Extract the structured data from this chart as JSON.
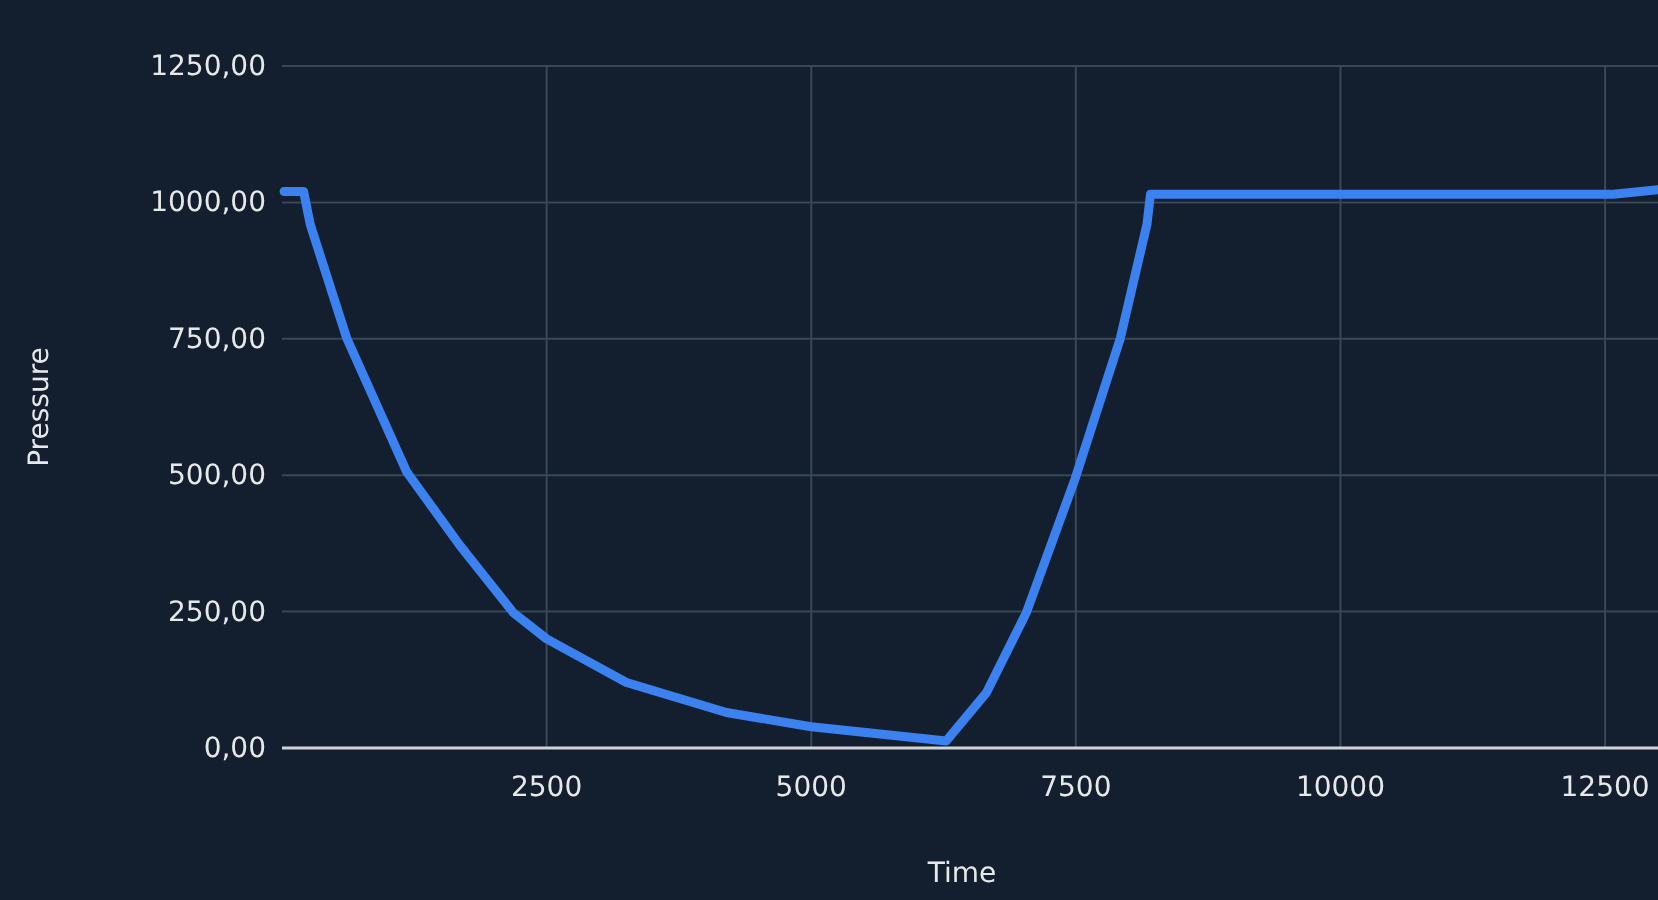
{
  "chart_data": {
    "type": "line",
    "xlabel": "Time",
    "ylabel": "Pressure",
    "xlim": [
      0,
      13000
    ],
    "ylim": [
      0,
      1250
    ],
    "xticks": [
      2500,
      5000,
      7500,
      10000,
      12500
    ],
    "yticks": [
      {
        "value": 0,
        "label": "0,00"
      },
      {
        "value": 250,
        "label": "250,00"
      },
      {
        "value": 500,
        "label": "500,00"
      },
      {
        "value": 750,
        "label": "750,00"
      },
      {
        "value": 1000,
        "label": "1000,00"
      },
      {
        "value": 1250,
        "label": "1250,00"
      }
    ],
    "grid": true,
    "marker": "none",
    "line_style": "solid",
    "x": [
      20,
      204,
      266,
      612,
      1178,
      1682,
      2186,
      2500,
      3255,
      4199,
      5000,
      6276,
      6654,
      7032,
      7494,
      7920,
      8172,
      8205,
      10000,
      12580,
      13000
    ],
    "series": [
      {
        "color": "#3b82f0",
        "values": [
          1020,
          1020,
          960,
          751,
          506,
          371,
          248,
          200,
          120,
          65,
          39,
          13,
          101,
          248,
          494,
          751,
          960,
          1015,
          1015,
          1015,
          1023
        ]
      }
    ]
  }
}
